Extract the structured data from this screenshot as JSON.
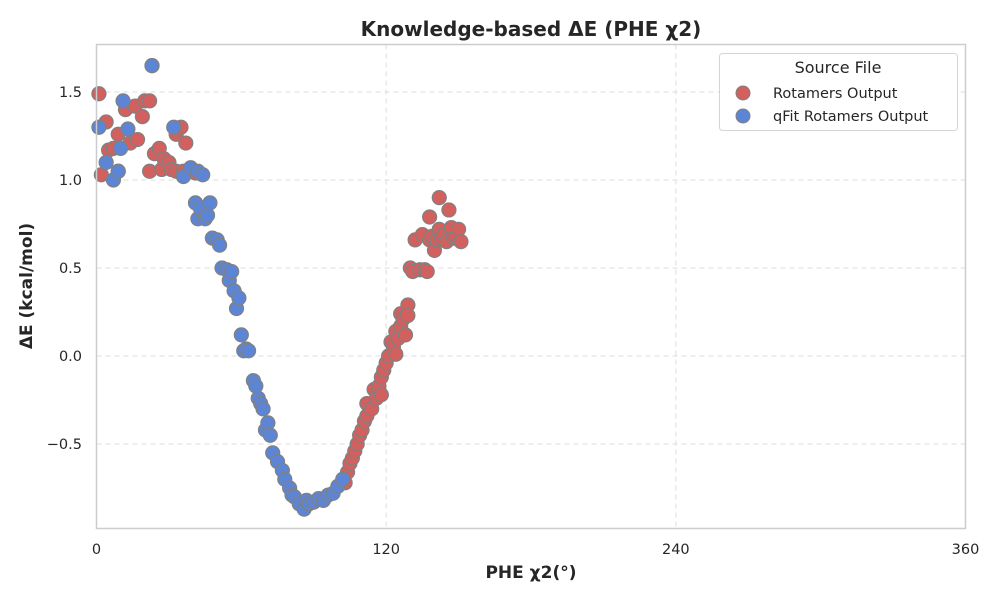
{
  "chart_data": {
    "type": "scatter",
    "title": "Knowledge-based ΔE (PHE χ2)",
    "xlabel": "PHE χ2(°)",
    "ylabel": "ΔE (kcal/mol)",
    "xlim": [
      0,
      360
    ],
    "ylim": [
      -0.98,
      1.77
    ],
    "xticks": [
      0,
      120,
      240,
      360
    ],
    "xtick_labels": [
      "0",
      "120",
      "240",
      "360"
    ],
    "yticks": [
      1.5,
      1.0,
      0.5,
      0.0,
      -0.5
    ],
    "ytick_labels": [
      "1.5",
      "1.0",
      "0.5",
      "0.0",
      "−0.5"
    ],
    "grid": true,
    "legend": {
      "title": "Source File",
      "position": "top-right"
    },
    "series": [
      {
        "name": "Rotamers Output",
        "color": "#d1605e",
        "points": [
          [
            1,
            1.49
          ],
          [
            2,
            1.03
          ],
          [
            4,
            1.33
          ],
          [
            5,
            1.17
          ],
          [
            7,
            1.18
          ],
          [
            9,
            1.05
          ],
          [
            9,
            1.26
          ],
          [
            12,
            1.4
          ],
          [
            14,
            1.21
          ],
          [
            16,
            1.42
          ],
          [
            17,
            1.23
          ],
          [
            19,
            1.36
          ],
          [
            20,
            1.45
          ],
          [
            22,
            1.45
          ],
          [
            22,
            1.05
          ],
          [
            23,
            1.65
          ],
          [
            24,
            1.15
          ],
          [
            26,
            1.18
          ],
          [
            27,
            1.06
          ],
          [
            28,
            1.12
          ],
          [
            30,
            1.1
          ],
          [
            31,
            1.06
          ],
          [
            33,
            1.26
          ],
          [
            33,
            1.05
          ],
          [
            35,
            1.3
          ],
          [
            36,
            1.05
          ],
          [
            37,
            1.21
          ],
          [
            39,
            1.06
          ],
          [
            41,
            1.04
          ],
          [
            103,
            -0.72
          ],
          [
            104,
            -0.66
          ],
          [
            105,
            -0.61
          ],
          [
            106,
            -0.58
          ],
          [
            107,
            -0.54
          ],
          [
            108,
            -0.5
          ],
          [
            109,
            -0.45
          ],
          [
            110,
            -0.42
          ],
          [
            111,
            -0.37
          ],
          [
            112,
            -0.34
          ],
          [
            112,
            -0.27
          ],
          [
            114,
            -0.3
          ],
          [
            115,
            -0.19
          ],
          [
            116,
            -0.24
          ],
          [
            117,
            -0.17
          ],
          [
            118,
            -0.12
          ],
          [
            118,
            -0.22
          ],
          [
            119,
            -0.08
          ],
          [
            120,
            -0.04
          ],
          [
            121,
            0.0
          ],
          [
            122,
            0.08
          ],
          [
            123,
            0.05
          ],
          [
            124,
            0.14
          ],
          [
            124,
            0.01
          ],
          [
            125,
            0.1
          ],
          [
            126,
            0.24
          ],
          [
            126,
            0.17
          ],
          [
            127,
            0.21
          ],
          [
            128,
            0.12
          ],
          [
            129,
            0.29
          ],
          [
            129,
            0.23
          ],
          [
            130,
            0.5
          ],
          [
            131,
            0.48
          ],
          [
            132,
            0.66
          ],
          [
            134,
            0.49
          ],
          [
            135,
            0.69
          ],
          [
            136,
            0.49
          ],
          [
            137,
            0.48
          ],
          [
            138,
            0.66
          ],
          [
            138,
            0.79
          ],
          [
            139,
            0.68
          ],
          [
            140,
            0.6
          ],
          [
            141,
            0.66
          ],
          [
            142,
            0.72
          ],
          [
            142,
            0.9
          ],
          [
            143,
            0.67
          ],
          [
            144,
            0.69
          ],
          [
            145,
            0.65
          ],
          [
            146,
            0.83
          ],
          [
            147,
            0.73
          ],
          [
            148,
            0.67
          ],
          [
            149,
            0.68
          ],
          [
            150,
            0.72
          ],
          [
            151,
            0.65
          ]
        ]
      },
      {
        "name": "qFit Rotamers Output",
        "color": "#5d85d6",
        "points": [
          [
            1,
            1.3
          ],
          [
            4,
            1.1
          ],
          [
            7,
            1.0
          ],
          [
            9,
            1.05
          ],
          [
            10,
            1.18
          ],
          [
            11,
            1.45
          ],
          [
            13,
            1.29
          ],
          [
            23,
            1.65
          ],
          [
            32,
            1.3
          ],
          [
            36,
            1.02
          ],
          [
            39,
            1.07
          ],
          [
            42,
            1.05
          ],
          [
            44,
            1.03
          ],
          [
            41,
            0.87
          ],
          [
            42,
            0.78
          ],
          [
            43,
            0.84
          ],
          [
            45,
            0.78
          ],
          [
            46,
            0.8
          ],
          [
            47,
            0.87
          ],
          [
            48,
            0.67
          ],
          [
            50,
            0.66
          ],
          [
            51,
            0.63
          ],
          [
            52,
            0.5
          ],
          [
            54,
            0.49
          ],
          [
            55,
            0.43
          ],
          [
            56,
            0.48
          ],
          [
            57,
            0.37
          ],
          [
            58,
            0.27
          ],
          [
            59,
            0.33
          ],
          [
            60,
            0.12
          ],
          [
            61,
            0.03
          ],
          [
            62,
            0.04
          ],
          [
            63,
            0.03
          ],
          [
            65,
            -0.14
          ],
          [
            66,
            -0.17
          ],
          [
            67,
            -0.24
          ],
          [
            68,
            -0.27
          ],
          [
            69,
            -0.3
          ],
          [
            70,
            -0.42
          ],
          [
            71,
            -0.38
          ],
          [
            72,
            -0.45
          ],
          [
            73,
            -0.55
          ],
          [
            75,
            -0.6
          ],
          [
            77,
            -0.65
          ],
          [
            78,
            -0.7
          ],
          [
            80,
            -0.75
          ],
          [
            81,
            -0.79
          ],
          [
            82,
            -0.8
          ],
          [
            84,
            -0.84
          ],
          [
            86,
            -0.87
          ],
          [
            87,
            -0.82
          ],
          [
            88,
            -0.84
          ],
          [
            90,
            -0.83
          ],
          [
            92,
            -0.81
          ],
          [
            94,
            -0.82
          ],
          [
            96,
            -0.79
          ],
          [
            98,
            -0.78
          ],
          [
            100,
            -0.74
          ],
          [
            102,
            -0.7
          ]
        ]
      }
    ]
  }
}
